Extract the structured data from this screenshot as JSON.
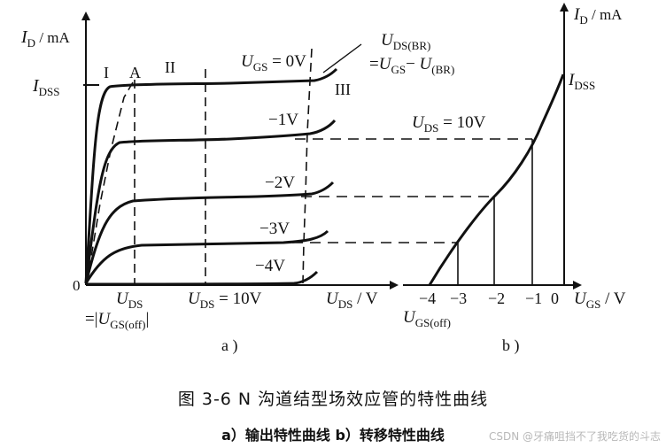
{
  "left_plot": {
    "y_axis": {
      "symbol": "I",
      "sub": "D",
      "unit": " / mA"
    },
    "x_axis": {
      "symbol": "U",
      "sub": "DS",
      "unit": " / V"
    },
    "origin": "0",
    "idss": {
      "symbol": "I",
      "sub": "DSS"
    },
    "regions": {
      "I": "I",
      "II": "II",
      "III": "III",
      "A": "A"
    },
    "curve_labels": {
      "ugs0": {
        "symbol": "U",
        "sub": "GS",
        "rest": " = 0V"
      },
      "m1": "−1V",
      "m2": "−2V",
      "m3": "−3V",
      "m4": "−4V"
    },
    "breakdown": {
      "line1": {
        "symbol": "U",
        "sub": "DS(BR)"
      },
      "line2": {
        "prefix": "=",
        "s1": "U",
        "sub1": "GS",
        "mid": "− ",
        "s2": "U",
        "sub2": "(BR)"
      }
    },
    "x_marks": {
      "uds": {
        "symbol": "U",
        "sub": "DS"
      },
      "ugsoff": {
        "prefix": "=|",
        "symbol": "U",
        "sub": "GS(off)",
        "suffix": "|"
      },
      "uds10": {
        "symbol": "U",
        "sub": "DS",
        "rest": " = 10V"
      }
    },
    "panel_label": "a )"
  },
  "right_plot": {
    "y_axis": {
      "symbol": "I",
      "sub": "D",
      "unit": " / mA"
    },
    "x_axis": {
      "symbol": "U",
      "sub": "GS",
      "unit": " / V"
    },
    "idss": {
      "symbol": "I",
      "sub": "DSS"
    },
    "uds_label": {
      "symbol": "U",
      "sub": "DS",
      "rest": " = 10V"
    },
    "ticks": [
      "−4",
      "−3",
      "−2",
      "−1",
      "0"
    ],
    "ugsoff": {
      "symbol": "U",
      "sub": "GS(off)"
    },
    "panel_label": "b )"
  },
  "caption": {
    "title": "图 3-6   N 沟道结型场效应管的特性曲线",
    "sub": "a）输出特性曲线   b）转移特性曲线"
  },
  "watermark": "CSDN @牙痛咀挡不了我吃货的斗志"
}
